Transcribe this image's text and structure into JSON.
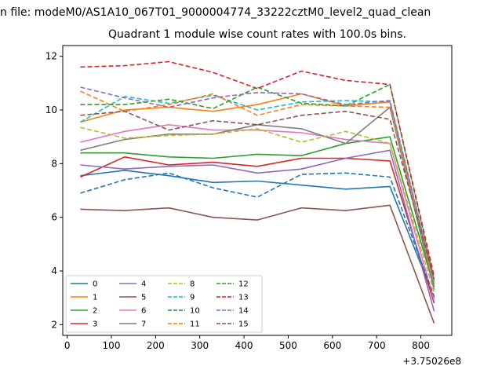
{
  "suptitle": "n file: modeM0/AS1A10_067T01_9000004774_33222cztM0_level2_quad_clean",
  "chart_data": {
    "type": "line",
    "title": "Quadrant 1 module wise count rates with 100.0s bins.",
    "x_offset_label": "+3.75026e8",
    "x": [
      30,
      130,
      230,
      330,
      430,
      530,
      630,
      730,
      830
    ],
    "xlim": [
      -10,
      870
    ],
    "ylim": [
      1.6,
      12.4
    ],
    "xticks": [
      0,
      100,
      200,
      300,
      400,
      500,
      600,
      700,
      800
    ],
    "yticks": [
      2,
      4,
      6,
      8,
      10,
      12
    ],
    "grid": false,
    "legend": {
      "placement": "lower-left",
      "columns": 4
    },
    "series": [
      {
        "name": "0",
        "color": "#1f77b4",
        "dash": "solid",
        "values": [
          7.55,
          7.75,
          7.55,
          7.3,
          7.35,
          7.2,
          7.05,
          7.15,
          3.0
        ]
      },
      {
        "name": "1",
        "color": "#ff7f0e",
        "dash": "solid",
        "values": [
          9.55,
          10.0,
          10.1,
          9.95,
          10.2,
          10.6,
          10.15,
          10.3,
          3.5
        ]
      },
      {
        "name": "2",
        "color": "#2ca02c",
        "dash": "solid",
        "values": [
          8.4,
          8.4,
          8.25,
          8.2,
          8.35,
          8.3,
          8.75,
          9.0,
          3.4
        ]
      },
      {
        "name": "3",
        "color": "#d62728",
        "dash": "solid",
        "values": [
          7.5,
          8.25,
          7.95,
          8.05,
          7.9,
          8.2,
          8.2,
          8.1,
          2.8
        ]
      },
      {
        "name": "4",
        "color": "#9467bd",
        "dash": "solid",
        "values": [
          7.95,
          7.8,
          7.9,
          7.95,
          7.65,
          7.8,
          8.2,
          8.5,
          2.5
        ]
      },
      {
        "name": "5",
        "color": "#8c564b",
        "dash": "solid",
        "values": [
          6.3,
          6.25,
          6.35,
          6.0,
          5.9,
          6.35,
          6.25,
          6.45,
          2.05
        ]
      },
      {
        "name": "6",
        "color": "#e377c2",
        "dash": "solid",
        "values": [
          8.8,
          9.2,
          9.45,
          9.25,
          9.25,
          9.15,
          8.9,
          8.75,
          2.9
        ]
      },
      {
        "name": "7",
        "color": "#7f7f7f",
        "dash": "solid",
        "values": [
          8.5,
          8.9,
          9.1,
          9.1,
          9.45,
          9.3,
          8.75,
          10.1,
          3.3
        ]
      },
      {
        "name": "8",
        "color": "#bcbd22",
        "dash": "dashed",
        "values": [
          9.35,
          8.95,
          9.05,
          9.1,
          9.3,
          8.8,
          9.2,
          8.75,
          3.2
        ]
      },
      {
        "name": "9",
        "color": "#17becf",
        "dash": "dashed",
        "values": [
          9.55,
          10.5,
          10.25,
          10.55,
          10.0,
          10.3,
          10.35,
          10.3,
          3.6
        ]
      },
      {
        "name": "10",
        "color": "#1f77b4",
        "dash": "dashed",
        "values": [
          6.9,
          7.4,
          7.65,
          7.1,
          6.75,
          7.6,
          7.65,
          7.5,
          3.05
        ]
      },
      {
        "name": "11",
        "color": "#ff7f0e",
        "dash": "dashed",
        "values": [
          10.7,
          9.95,
          10.2,
          10.6,
          9.8,
          10.2,
          10.15,
          10.1,
          3.6
        ]
      },
      {
        "name": "12",
        "color": "#2ca02c",
        "dash": "dashed",
        "values": [
          10.2,
          10.2,
          10.4,
          10.05,
          10.85,
          10.25,
          10.15,
          10.95,
          3.7
        ]
      },
      {
        "name": "13",
        "color": "#d62728",
        "dash": "dashed",
        "values": [
          11.6,
          11.65,
          11.8,
          11.4,
          10.8,
          11.45,
          11.1,
          10.95,
          3.8
        ]
      },
      {
        "name": "14",
        "color": "#9467bd",
        "dash": "dashed",
        "values": [
          10.85,
          10.45,
          10.1,
          10.45,
          10.65,
          10.6,
          10.2,
          10.35,
          3.65
        ]
      },
      {
        "name": "15",
        "color": "#8c564b",
        "dash": "dashed",
        "values": [
          9.8,
          9.95,
          9.25,
          9.6,
          9.45,
          9.8,
          9.95,
          9.65,
          3.7
        ]
      }
    ]
  }
}
